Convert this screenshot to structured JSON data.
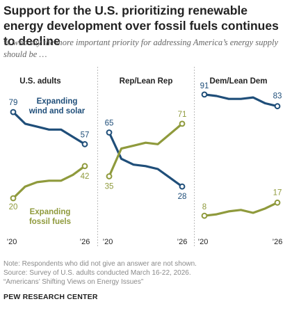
{
  "title": "Support for the U.S. prioritizing renewable energy development over fossil fuels continues to decline",
  "subtitle": "% who say the more important priority for addressing America’s energy supply should be …",
  "notes": {
    "note": "Note: Respondents who did not give an answer are not shown.",
    "source": "Source: Survey of U.S. adults conducted March 16-22, 2026.",
    "report": "“Americans’ Shifting Views on Energy Issues”"
  },
  "brand": "PEW RESEARCH CENTER",
  "colors": {
    "renewable": "#1f4e79",
    "fossil": "#8f9a3c"
  },
  "chart_data": [
    {
      "type": "line",
      "panel_title": "U.S. adults",
      "x": [
        2020,
        2021,
        2022,
        2023,
        2024,
        2025,
        2026
      ],
      "x_tick_labels": [
        "’20",
        "’26"
      ],
      "series": [
        {
          "name": "Expanding wind and solar",
          "key": "renewable",
          "values": [
            79,
            71,
            69,
            67,
            67,
            62,
            57
          ],
          "start_label": "79",
          "end_label": "57"
        },
        {
          "name": "Expanding fossil fuels",
          "key": "fossil",
          "values": [
            20,
            28,
            31,
            32,
            32,
            36,
            42
          ],
          "start_label": "20",
          "end_label": "42"
        }
      ],
      "ylim": [
        0,
        100
      ]
    },
    {
      "type": "line",
      "panel_title": "Rep/Lean Rep",
      "x": [
        2020,
        2021,
        2022,
        2023,
        2024,
        2025,
        2026
      ],
      "x_tick_labels": [
        "’20",
        "’26"
      ],
      "series": [
        {
          "name": "Expanding wind and solar",
          "key": "renewable",
          "values": [
            65,
            47,
            43,
            42,
            40,
            34,
            28
          ],
          "start_label": "65",
          "end_label": "28"
        },
        {
          "name": "Expanding fossil fuels",
          "key": "fossil",
          "values": [
            35,
            54,
            56,
            58,
            57,
            64,
            71
          ],
          "start_label": "35",
          "end_label": "71"
        }
      ],
      "ylim": [
        0,
        100
      ]
    },
    {
      "type": "line",
      "panel_title": "Dem/Lean Dem",
      "x": [
        2020,
        2021,
        2022,
        2023,
        2024,
        2025,
        2026
      ],
      "x_tick_labels": [
        "’20",
        "’26"
      ],
      "series": [
        {
          "name": "Expanding wind and solar",
          "key": "renewable",
          "values": [
            91,
            90,
            88,
            88,
            89,
            85,
            83
          ],
          "start_label": "91",
          "end_label": "83"
        },
        {
          "name": "Expanding fossil fuels",
          "key": "fossil",
          "values": [
            8,
            9,
            11,
            12,
            10,
            13,
            17
          ],
          "start_label": "8",
          "end_label": "17"
        }
      ],
      "ylim": [
        0,
        100
      ]
    }
  ]
}
